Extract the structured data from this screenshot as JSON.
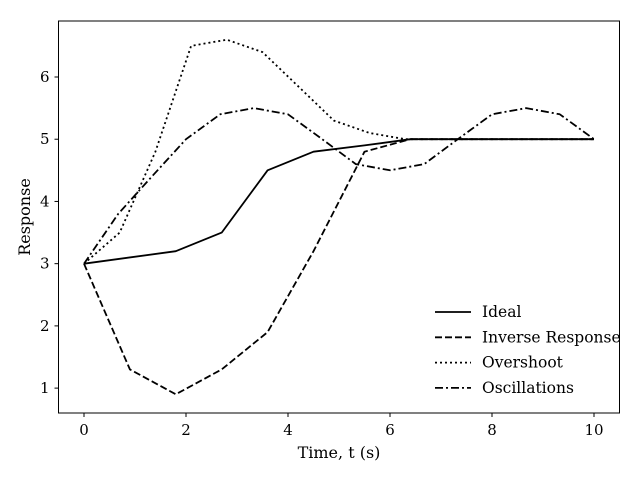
{
  "chart_data": {
    "type": "line",
    "xlabel": "Time, t (s)",
    "ylabel": "Response",
    "xlim": [
      -0.5,
      10.5
    ],
    "ylim": [
      0.6,
      6.9
    ],
    "xticks": [
      0,
      2,
      4,
      6,
      8,
      10
    ],
    "yticks": [
      1,
      2,
      3,
      4,
      5,
      6
    ],
    "grid": false,
    "legend": "lower-right",
    "series": [
      {
        "name": "Ideal",
        "style": "solid",
        "x": [
          0,
          1.8,
          2.7,
          3.6,
          4.5,
          5.5,
          6.4,
          7.3,
          8.2,
          9.1,
          10
        ],
        "y": [
          3,
          3.2,
          3.5,
          4.5,
          4.8,
          4.9,
          5,
          5,
          5,
          5,
          5
        ]
      },
      {
        "name": "Inverse Response",
        "style": "dashed",
        "x": [
          0,
          0.9,
          1.8,
          2.7,
          3.6,
          4.5,
          5.5,
          6.4,
          7.3,
          8.2,
          9.1,
          10
        ],
        "y": [
          3,
          1.3,
          0.9,
          1.3,
          1.9,
          3.2,
          4.8,
          5,
          5,
          5,
          5,
          5
        ]
      },
      {
        "name": "Overshoot",
        "style": "dotted",
        "x": [
          0,
          0.7,
          1.4,
          2.1,
          2.8,
          3.5,
          4.2,
          4.9,
          5.6,
          6.3,
          7,
          7.7,
          8.4,
          9.1,
          10
        ],
        "y": [
          3,
          3.5,
          4.8,
          6.5,
          6.6,
          6.4,
          5.85,
          5.3,
          5.1,
          5,
          5,
          5,
          5,
          5,
          5
        ]
      },
      {
        "name": "Oscillations",
        "style": "dashdot",
        "x": [
          0,
          0.67,
          1.33,
          2,
          2.67,
          3.33,
          4,
          4.67,
          5.33,
          6,
          6.67,
          7.33,
          8,
          8.67,
          9.33,
          10
        ],
        "y": [
          3,
          3.8,
          4.4,
          5,
          5.4,
          5.5,
          5.4,
          5,
          4.6,
          4.5,
          4.6,
          5,
          5.4,
          5.5,
          5.4,
          5
        ]
      }
    ]
  }
}
